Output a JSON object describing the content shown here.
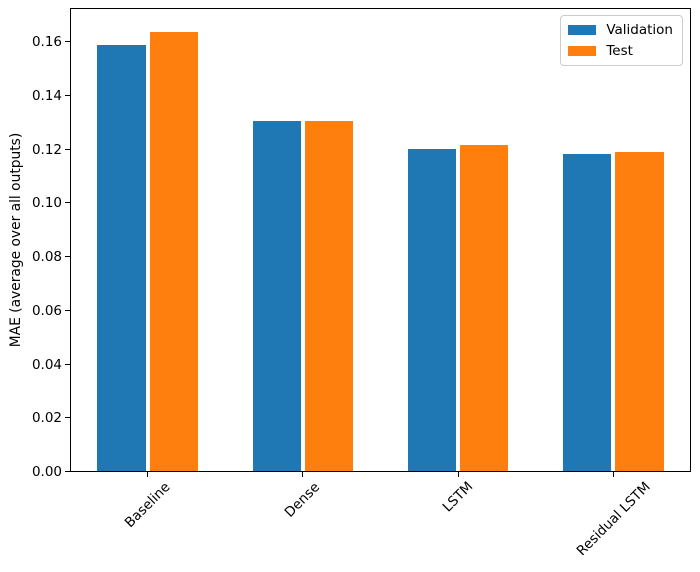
{
  "chart_data": {
    "type": "bar",
    "title": "",
    "categories": [
      "Baseline",
      "Dense",
      "LSTM",
      "Residual LSTM"
    ],
    "series": [
      {
        "name": "Validation",
        "color": "#1f77b4",
        "values": [
          0.159,
          0.1308,
          0.1201,
          0.1185
        ]
      },
      {
        "name": "Test",
        "color": "#ff7f0e",
        "values": [
          0.1637,
          0.1308,
          0.1218,
          0.1192
        ]
      }
    ],
    "xlabel": "",
    "ylabel": "MAE (average over all outputs)",
    "ylim": [
      0,
      0.1727
    ],
    "yticks": [
      0,
      0.02,
      0.04,
      0.06,
      0.08,
      0.1,
      0.12,
      0.14,
      0.16
    ],
    "ytick_labels": [
      "0.00",
      "0.02",
      "0.04",
      "0.06",
      "0.08",
      "0.10",
      "0.12",
      "0.14",
      "0.16"
    ],
    "xtick_rotation_deg": 45,
    "bar_width_units": 0.31,
    "bar_offset_units": 0.17,
    "legend": {
      "position": "upper-right",
      "entries": [
        "Validation",
        "Test"
      ]
    },
    "grid": false,
    "background": "#ffffff",
    "spine_color": "#000000"
  }
}
